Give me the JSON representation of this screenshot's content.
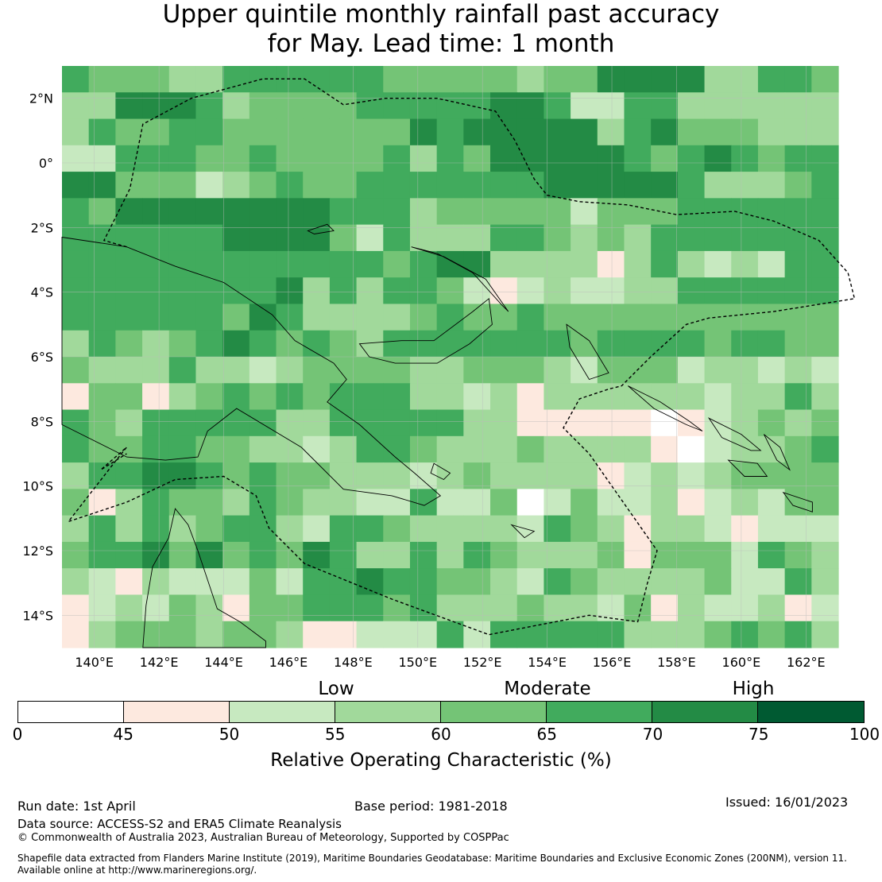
{
  "title_line1": "Upper quintile monthly rainfall past accuracy",
  "title_line2": "for May. Lead time: 1 month",
  "map": {
    "lon_min": 139,
    "lon_max": 163,
    "lat_min": -15,
    "lat_max": 3,
    "lon_ticks": [
      "140°E",
      "142°E",
      "144°E",
      "146°E",
      "148°E",
      "150°E",
      "152°E",
      "154°E",
      "156°E",
      "158°E",
      "160°E",
      "162°E"
    ],
    "lat_ticks": [
      "2°N",
      "0°",
      "2°S",
      "4°S",
      "6°S",
      "8°S",
      "10°S",
      "12°S",
      "14°S"
    ],
    "cell_levels_encoded": "544433555555444443446666335543366653444455555665225533333335445544444446566666356444333225554454444535466666545654556644423454455555556666653334554666666665553444442444555555555555666642533355434355555555555555555554566333313532325555555555635355421232233555555555555465333345445444444444443543456545435555555455554554443335332344443344432444233232144134545455533231333333233535435555533555553311111012343454455443323554333433331023345355665454433323433331232344444135443543322522402422312324435353455325543333254313321222455646454653353543334144425433213222425565544325433334225312324314455545333433241322312134443443112225255555333454532322413332443344442233335223334513443331323555545345533334411111121033344445543413155443332323322433343511121114444455442323542335232322322234244332233225341455545534144221233312323323333443454332111315343555554353344233223341333311223433002324444454543333423433413232322223233331322232243354444543314232323232111323413325344545555553134334333343233321313331233443555555533434443322430322223322233433545555554534324333433133113223233332331214555545444433442222445423124343222422212232334545555255332332333423322323333434212232231221255554545444443233131322333322244234332322122323355554455343442331332233333222231321222122023343233555453542233532222212342143222334442232212323344544543422445344325444345414433334322331113234445555542222244243453334343452414433324142222432352442255444344444443444335445323335455455",
    "colors": [
      "#ffffff",
      "#fde9df",
      "#c7e9c0",
      "#a1d99b",
      "#74c476",
      "#41ab5d",
      "#238b45",
      "#005a32"
    ]
  },
  "level_labels": {
    "low": "Low",
    "moderate": "Moderate",
    "high": "High"
  },
  "colorbar": {
    "ticks": [
      "0",
      "45",
      "50",
      "55",
      "60",
      "65",
      "70",
      "75",
      "100"
    ],
    "label": "Relative Operating Characteristic (%)"
  },
  "footer": {
    "run_date": "Run date: 1st April",
    "base_period": "Base period: 1981-2018",
    "issued": "Issued: 16/01/2023",
    "data_source": "Data source: ACCESS-S2 and ERA5 Climate Reanalysis",
    "copyright": "© Commonwealth of Australia 2023, Australian Bureau of Meteorology, Supported by COSPPac",
    "shapefile_line1": "Shapefile data extracted from Flanders Marine Institute (2019), Maritime Boundaries Geodatabase: Maritime Boundaries and Exclusive Economic Zones (200NM), version 11.",
    "shapefile_line2": "Available online at http://www.marineregions.org/."
  }
}
